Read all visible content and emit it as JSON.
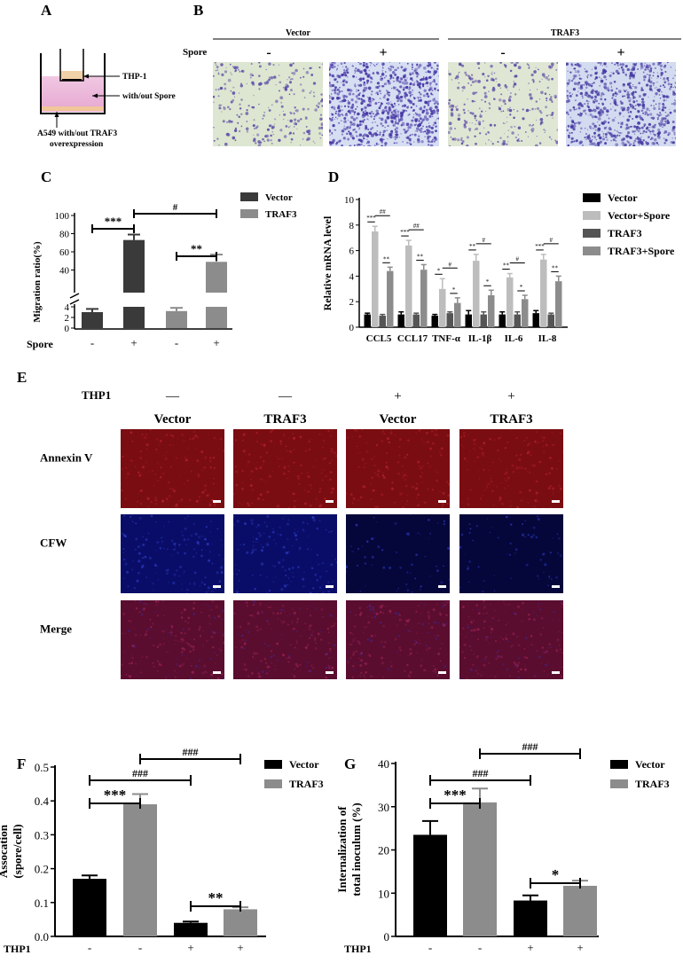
{
  "panels": {
    "A": {
      "letter": "A",
      "labels": [
        "THP-1",
        "with/out Spore",
        "A549 with/out TRAF3",
        "overexpression"
      ]
    },
    "B": {
      "letter": "B",
      "groups": [
        "Vector",
        "TRAF3"
      ],
      "row_label": "Spore",
      "signs": [
        "-",
        "+",
        "-",
        "+"
      ],
      "images": [
        {
          "bg": "#dde6d0",
          "cell": "#5a4aa8",
          "density": 260
        },
        {
          "bg": "#d6def2",
          "cell": "#4535a5",
          "density": 900
        },
        {
          "bg": "#dfe7d4",
          "cell": "#5c4ca6",
          "density": 300
        },
        {
          "bg": "#d3dbf0",
          "cell": "#473aa2",
          "density": 760
        }
      ]
    },
    "C": {
      "letter": "C"
    },
    "D": {
      "letter": "D"
    },
    "E": {
      "letter": "E",
      "thp1_label": "THP1",
      "thp1_signs": [
        "—",
        "—",
        "+",
        "+"
      ],
      "columns": [
        "Vector",
        "TRAF3",
        "Vector",
        "TRAF3"
      ],
      "rows": [
        "Annexin V",
        "CFW",
        "Merge"
      ],
      "colors": {
        "red": "#7a0d12",
        "blue": "#0a0d68",
        "merge": "#5a0d2f"
      }
    },
    "F": {
      "letter": "F"
    },
    "G": {
      "letter": "G"
    }
  },
  "chart_data": [
    {
      "id": "C",
      "type": "bar",
      "ylabel": "Migration ratio(%)",
      "row_label": "Spore",
      "categories": [
        "-",
        "+",
        "-",
        "+"
      ],
      "values": [
        3,
        73,
        3.2,
        49
      ],
      "errors": [
        0.6,
        6,
        0.6,
        8
      ],
      "series_of_bar": [
        0,
        0,
        1,
        1
      ],
      "series": [
        {
          "name": "Vector",
          "color": "#3a3a3a"
        },
        {
          "name": "TRAF3",
          "color": "#8c8c8c"
        }
      ],
      "broken_axis": {
        "lower": [
          0,
          4
        ],
        "upper": [
          20,
          100
        ]
      },
      "yticks_lower": [
        "0",
        "2",
        "4"
      ],
      "yticks_upper": [
        "40",
        "60",
        "80",
        "100"
      ],
      "annotations": [
        {
          "from": 0,
          "to": 1,
          "text": "***"
        },
        {
          "from": 1,
          "to": 3,
          "text": "#"
        },
        {
          "from": 2,
          "to": 3,
          "text": "**"
        }
      ]
    },
    {
      "id": "D",
      "type": "bar",
      "ylabel": "Relative mRNA level",
      "ylim": [
        0,
        10
      ],
      "yticks": [
        "0",
        "2",
        "4",
        "6",
        "8",
        "10"
      ],
      "categories": [
        "CCL5",
        "CCL17",
        "TNF-α",
        "IL-1β",
        "IL-6",
        "IL-8"
      ],
      "series": [
        {
          "name": "Vector",
          "color": "#000000",
          "values": [
            1,
            1,
            0.9,
            1,
            1,
            1.1
          ],
          "errors": [
            0.1,
            0.2,
            0.1,
            0.3,
            0.2,
            0.2
          ]
        },
        {
          "name": "Vector+Spore",
          "color": "#bdbdbd",
          "values": [
            7.5,
            6.4,
            3.0,
            5.2,
            3.9,
            5.3
          ],
          "errors": [
            0.4,
            0.4,
            0.8,
            0.5,
            0.3,
            0.4
          ]
        },
        {
          "name": "TRAF3",
          "color": "#555555",
          "values": [
            0.9,
            1.0,
            1.1,
            1.0,
            1.0,
            1.0
          ],
          "errors": [
            0.1,
            0.1,
            0.1,
            0.2,
            0.2,
            0.1
          ]
        },
        {
          "name": "TRAF3+Spore",
          "color": "#8c8c8c",
          "values": [
            4.4,
            4.5,
            1.9,
            2.5,
            2.2,
            3.6
          ],
          "errors": [
            0.3,
            0.4,
            0.4,
            0.4,
            0.3,
            0.4
          ]
        }
      ],
      "annotations": [
        {
          "cat": 0,
          "a": 0,
          "b": 1,
          "text": "***"
        },
        {
          "cat": 0,
          "a": 1,
          "b": 3,
          "text": "##"
        },
        {
          "cat": 0,
          "a": 2,
          "b": 3,
          "text": "**"
        },
        {
          "cat": 1,
          "a": 0,
          "b": 1,
          "text": "***"
        },
        {
          "cat": 1,
          "a": 1,
          "b": 3,
          "text": "##"
        },
        {
          "cat": 1,
          "a": 2,
          "b": 3,
          "text": "**"
        },
        {
          "cat": 2,
          "a": 0,
          "b": 1,
          "text": "*"
        },
        {
          "cat": 2,
          "a": 1,
          "b": 3,
          "text": "#"
        },
        {
          "cat": 2,
          "a": 2,
          "b": 3,
          "text": "*"
        },
        {
          "cat": 3,
          "a": 0,
          "b": 1,
          "text": "**"
        },
        {
          "cat": 3,
          "a": 1,
          "b": 3,
          "text": "#"
        },
        {
          "cat": 3,
          "a": 2,
          "b": 3,
          "text": "*"
        },
        {
          "cat": 4,
          "a": 0,
          "b": 1,
          "text": "**"
        },
        {
          "cat": 4,
          "a": 1,
          "b": 3,
          "text": "#"
        },
        {
          "cat": 4,
          "a": 2,
          "b": 3,
          "text": "*"
        },
        {
          "cat": 5,
          "a": 0,
          "b": 1,
          "text": "***"
        },
        {
          "cat": 5,
          "a": 1,
          "b": 3,
          "text": "#"
        },
        {
          "cat": 5,
          "a": 2,
          "b": 3,
          "text": "**"
        }
      ]
    },
    {
      "id": "F",
      "type": "bar",
      "ylabel": [
        "Assocation",
        "(spore/cell)"
      ],
      "ylim": [
        0,
        0.5
      ],
      "yticks": [
        "0.0",
        "0.1",
        "0.2",
        "0.3",
        "0.4",
        "0.5"
      ],
      "row_label": "THP1",
      "categories": [
        "-",
        "-",
        "+",
        "+"
      ],
      "values": [
        0.17,
        0.39,
        0.04,
        0.08
      ],
      "errors": [
        0.01,
        0.03,
        0.004,
        0.006
      ],
      "series_of_bar": [
        0,
        1,
        0,
        1
      ],
      "series": [
        {
          "name": "Vector",
          "color": "#000000"
        },
        {
          "name": "TRAF3",
          "color": "#8c8c8c"
        }
      ],
      "annotations": [
        {
          "from": 0,
          "to": 1,
          "text": "***"
        },
        {
          "from": 0,
          "to": 2,
          "text": "###"
        },
        {
          "from": 1,
          "to": 3,
          "text": "###"
        },
        {
          "from": 2,
          "to": 3,
          "text": "**"
        }
      ]
    },
    {
      "id": "G",
      "type": "bar",
      "ylabel": [
        "Internalization of",
        "total inoculum (%)"
      ],
      "ylim": [
        0,
        40
      ],
      "yticks": [
        "0",
        "10",
        "20",
        "30",
        "40"
      ],
      "row_label": "THP1",
      "categories": [
        "-",
        "-",
        "+",
        "+"
      ],
      "values": [
        23.5,
        31,
        8.3,
        11.7
      ],
      "errors": [
        3.2,
        3.2,
        1.2,
        1.2
      ],
      "series_of_bar": [
        0,
        1,
        0,
        1
      ],
      "series": [
        {
          "name": "Vector",
          "color": "#000000"
        },
        {
          "name": "TRAF3",
          "color": "#8c8c8c"
        }
      ],
      "annotations": [
        {
          "from": 0,
          "to": 1,
          "text": "***"
        },
        {
          "from": 0,
          "to": 2,
          "text": "###"
        },
        {
          "from": 1,
          "to": 3,
          "text": "###"
        },
        {
          "from": 2,
          "to": 3,
          "text": "*"
        }
      ]
    }
  ]
}
